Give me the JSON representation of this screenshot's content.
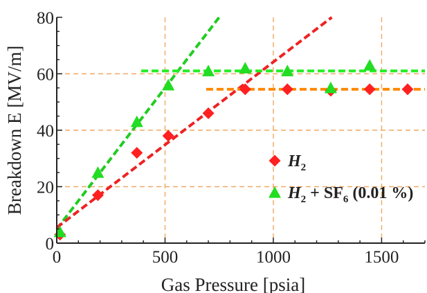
{
  "chart_data": {
    "type": "scatter",
    "xlabel": "Gas Pressure [psia]",
    "ylabel": "Breakdown E [MV/m]",
    "xlim": [
      0,
      1700
    ],
    "ylim": [
      0,
      80
    ],
    "x_ticks": [
      0,
      500,
      1000,
      1500
    ],
    "y_ticks": [
      0,
      20,
      40,
      60,
      80
    ],
    "grid": true,
    "legend_position": "right",
    "series": [
      {
        "name": "H2",
        "legend": {
          "main": "H",
          "sub": "2",
          "rest": ""
        },
        "marker": "diamond",
        "color": "#ff2020",
        "x": [
          15,
          190,
          370,
          515,
          700,
          870,
          1065,
          1265,
          1445,
          1620
        ],
        "y": [
          3,
          17,
          32,
          38,
          46,
          54.5,
          54.5,
          54,
          54.5,
          54.5
        ]
      },
      {
        "name": "H2 + SF6 (0.01 %)",
        "legend": {
          "main": "H",
          "sub": "2",
          "rest": " + SF",
          "sub2": "6",
          "tail": " (0.01 %)"
        },
        "marker": "triangle",
        "color": "#22dd22",
        "x": [
          15,
          190,
          370,
          515,
          700,
          870,
          1065,
          1265,
          1445
        ],
        "y": [
          4,
          25,
          43,
          56,
          61,
          62,
          61,
          55,
          63
        ]
      }
    ],
    "fits": [
      {
        "color": "#22cc22",
        "from": [
          0,
          5
        ],
        "to": [
          750,
          80
        ]
      },
      {
        "color": "#ee2222",
        "from": [
          0,
          5.5
        ],
        "to": [
          1270,
          80
        ]
      },
      {
        "color": "#22ee22",
        "from": [
          390,
          61
        ],
        "to": [
          1700,
          61
        ]
      },
      {
        "color": "#ff8800",
        "from": [
          690,
          54.5
        ],
        "to": [
          1700,
          54.5
        ]
      }
    ],
    "colors": {
      "grid": "#f0a860",
      "axis": "#222222"
    }
  }
}
